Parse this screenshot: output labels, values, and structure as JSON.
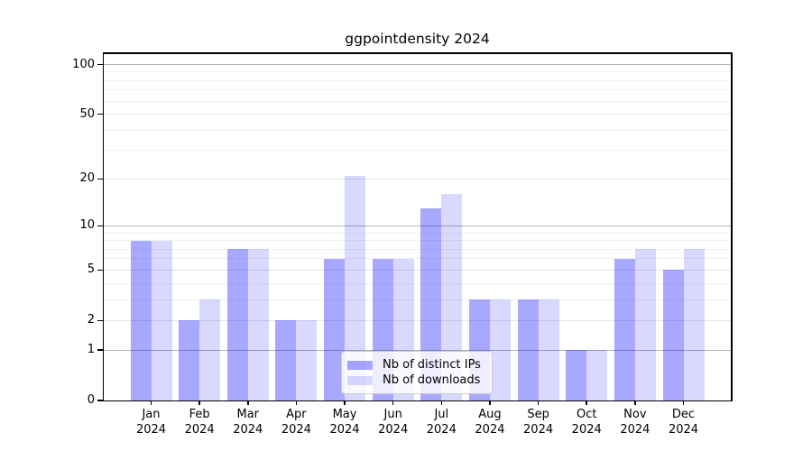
{
  "title": "ggpointdensity 2024",
  "chart_data": {
    "type": "bar",
    "title": "ggpointdensity 2024",
    "categories": [
      "Jan 2024",
      "Feb 2024",
      "Mar 2024",
      "Apr 2024",
      "May 2024",
      "Jun 2024",
      "Jul 2024",
      "Aug 2024",
      "Sep 2024",
      "Oct 2024",
      "Nov 2024",
      "Dec 2024"
    ],
    "month_labels": [
      "Jan",
      "Feb",
      "Mar",
      "Apr",
      "May",
      "Jun",
      "Jul",
      "Aug",
      "Sep",
      "Oct",
      "Nov",
      "Dec"
    ],
    "year_label": "2024",
    "series": [
      {
        "name": "Nb of distinct IPs",
        "color": "#0000ff57",
        "values": [
          8,
          2,
          7,
          2,
          6,
          6,
          13,
          3,
          3,
          1,
          6,
          5
        ]
      },
      {
        "name": "Nb of downloads",
        "color": "#0000ff26",
        "values": [
          8,
          3,
          7,
          2,
          21,
          6,
          16,
          3,
          3,
          1,
          7,
          7
        ]
      }
    ],
    "yscale": "log1p",
    "ylim": [
      0,
      116
    ],
    "y_ticks": [
      0,
      1,
      2,
      5,
      10,
      20,
      50,
      100
    ],
    "y_gridlines_major": [
      1,
      10,
      100
    ],
    "y_gridlines_mid": [
      2,
      5,
      20,
      50
    ],
    "y_gridlines_minor": [
      3,
      4,
      6,
      7,
      8,
      9,
      30,
      40,
      60,
      70,
      80,
      90
    ],
    "grid": true,
    "legend_position": "lower center",
    "xlabel": "",
    "ylabel": ""
  },
  "legend": {
    "items": [
      {
        "label": "Nb of distinct IPs",
        "swatch": "#0000ff57"
      },
      {
        "label": "Nb of downloads",
        "swatch": "#0000ff26"
      }
    ]
  },
  "colors": {
    "bar_distinct_ips": "#0000ff57",
    "bar_downloads": "#0000ff26",
    "grid_major": "#b4b4b4",
    "grid_mid": "#e4e4e4",
    "grid_minor": "#f0f0f0",
    "spine": "#000000",
    "background": "#ffffff",
    "text": "#000000"
  }
}
